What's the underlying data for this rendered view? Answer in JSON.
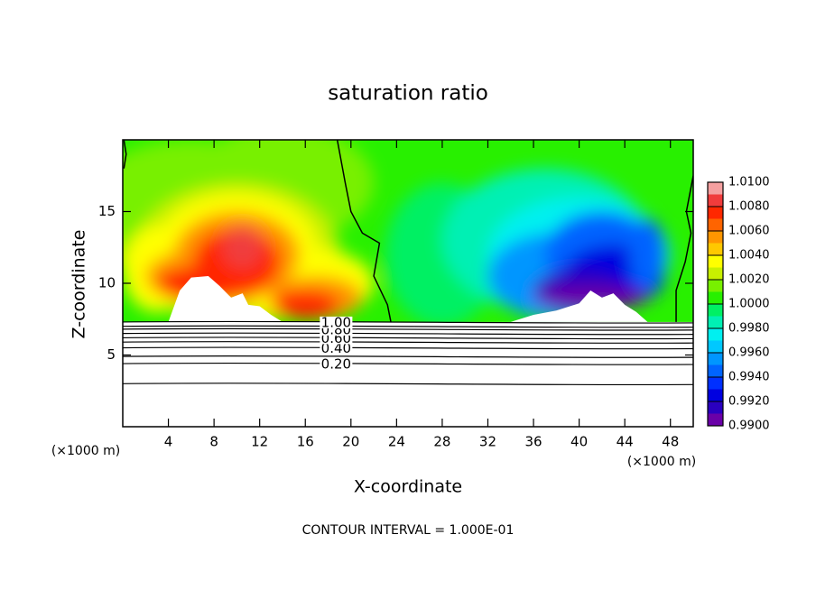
{
  "chart_data": {
    "type": "contour",
    "title": "saturation ratio",
    "x_label": "X-coordinate",
    "y_label": "Z-coordinate",
    "x_unit": "(×1000 m)",
    "x_unit_right": "(×1000 m)",
    "annotation": "CONTOUR INTERVAL = 1.000E-01",
    "xlim": [
      0,
      50
    ],
    "ylim": [
      0,
      20
    ],
    "xticks": [
      4,
      8,
      12,
      16,
      20,
      24,
      28,
      32,
      36,
      40,
      44,
      48
    ],
    "yticks": [
      5,
      10,
      15
    ],
    "colorbar": {
      "levels": [
        {
          "value": 0.99,
          "label": "0.9900"
        },
        {
          "value": 0.992,
          "label": "0.9920"
        },
        {
          "value": 0.994,
          "label": "0.9940"
        },
        {
          "value": 0.996,
          "label": "0.9960"
        },
        {
          "value": 0.998,
          "label": "0.9980"
        },
        {
          "value": 1.0,
          "label": "1.0000"
        },
        {
          "value": 1.002,
          "label": "1.0020"
        },
        {
          "value": 1.004,
          "label": "1.0040"
        },
        {
          "value": 1.006,
          "label": "1.0060"
        },
        {
          "value": 1.008,
          "label": "1.0080"
        },
        {
          "value": 1.01,
          "label": "1.0100"
        }
      ],
      "colors": [
        "#6a00a8",
        "#2a00c0",
        "#0000e0",
        "#0030ff",
        "#0064ff",
        "#0096ff",
        "#00c8ff",
        "#00f0f0",
        "#00f0b4",
        "#00f064",
        "#28f000",
        "#78f000",
        "#c8f000",
        "#ffff00",
        "#ffc800",
        "#ff9600",
        "#ff6400",
        "#ff2800",
        "#f03c3c",
        "#f4a0a0"
      ]
    },
    "contour_lines": [
      {
        "value": 0.1,
        "z": 3.0
      },
      {
        "value": 0.2,
        "label": "0.20",
        "z": 4.4
      },
      {
        "value": 0.3,
        "z": 4.9
      },
      {
        "value": 0.4,
        "label": "0.40",
        "z": 5.5
      },
      {
        "value": 0.5,
        "z": 5.9
      },
      {
        "value": 0.6,
        "label": "0.60",
        "z": 6.2
      },
      {
        "value": 0.7,
        "z": 6.5
      },
      {
        "value": 0.8,
        "label": "0.80",
        "z": 6.8
      },
      {
        "value": 0.9,
        "z": 7.0
      },
      {
        "value": 1.0,
        "label": "1.00",
        "z": 7.3
      }
    ]
  }
}
